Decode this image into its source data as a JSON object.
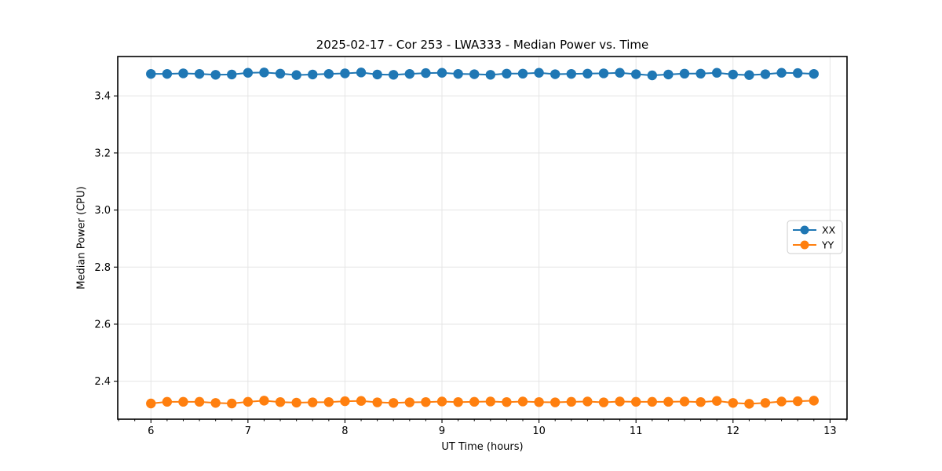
{
  "chart_data": {
    "type": "line",
    "title": "2025-02-17 - Cor 253 - LWA333 - Median Power vs. Time",
    "xlabel": "UT Time (hours)",
    "ylabel": "Median Power (CPU)",
    "xlim": [
      5.658,
      13.175
    ],
    "ylim": [
      2.267,
      3.538
    ],
    "xticks": [
      6,
      7,
      8,
      9,
      10,
      11,
      12,
      13
    ],
    "xtick_labels": [
      "6",
      "7",
      "8",
      "9",
      "10",
      "11",
      "12",
      "13"
    ],
    "yticks": [
      2.4,
      2.6,
      2.8,
      3.0,
      3.2,
      3.4
    ],
    "ytick_labels": [
      "2.4",
      "2.6",
      "2.8",
      "3.0",
      "3.2",
      "3.4"
    ],
    "x_minor_divisions": 6,
    "grid": true,
    "grid_color": "#e5e5e5",
    "spine_color": "#000000",
    "background": "#ffffff",
    "legend": {
      "location": "center right",
      "border_color": "#cccccc",
      "fill": "#ffffff"
    },
    "x": [
      6.0,
      6.1667,
      6.3333,
      6.5,
      6.6667,
      6.8333,
      7.0,
      7.1667,
      7.3333,
      7.5,
      7.6667,
      7.8333,
      8.0,
      8.1667,
      8.3333,
      8.5,
      8.6667,
      8.8333,
      9.0,
      9.1667,
      9.3333,
      9.5,
      9.6667,
      9.8333,
      10.0,
      10.1667,
      10.3333,
      10.5,
      10.6667,
      10.8333,
      11.0,
      11.1667,
      11.3333,
      11.5,
      11.6667,
      11.8333,
      12.0,
      12.1667,
      12.3333,
      12.5,
      12.6667,
      12.8333
    ],
    "series": [
      {
        "name": "XX",
        "color": "#1f77b4",
        "values": [
          3.477,
          3.477,
          3.479,
          3.477,
          3.474,
          3.475,
          3.481,
          3.482,
          3.478,
          3.473,
          3.475,
          3.477,
          3.479,
          3.482,
          3.475,
          3.474,
          3.477,
          3.48,
          3.481,
          3.477,
          3.476,
          3.474,
          3.478,
          3.478,
          3.481,
          3.476,
          3.477,
          3.478,
          3.479,
          3.481,
          3.476,
          3.472,
          3.475,
          3.478,
          3.478,
          3.481,
          3.475,
          3.473,
          3.476,
          3.481,
          3.48,
          3.477
        ]
      },
      {
        "name": "YY",
        "color": "#ff7f0e",
        "values": [
          2.322,
          2.328,
          2.328,
          2.328,
          2.324,
          2.322,
          2.328,
          2.332,
          2.327,
          2.325,
          2.326,
          2.327,
          2.33,
          2.331,
          2.326,
          2.324,
          2.326,
          2.327,
          2.329,
          2.327,
          2.328,
          2.329,
          2.327,
          2.329,
          2.327,
          2.326,
          2.328,
          2.329,
          2.326,
          2.329,
          2.328,
          2.328,
          2.328,
          2.329,
          2.327,
          2.331,
          2.324,
          2.321,
          2.324,
          2.329,
          2.33,
          2.332
        ]
      }
    ]
  }
}
